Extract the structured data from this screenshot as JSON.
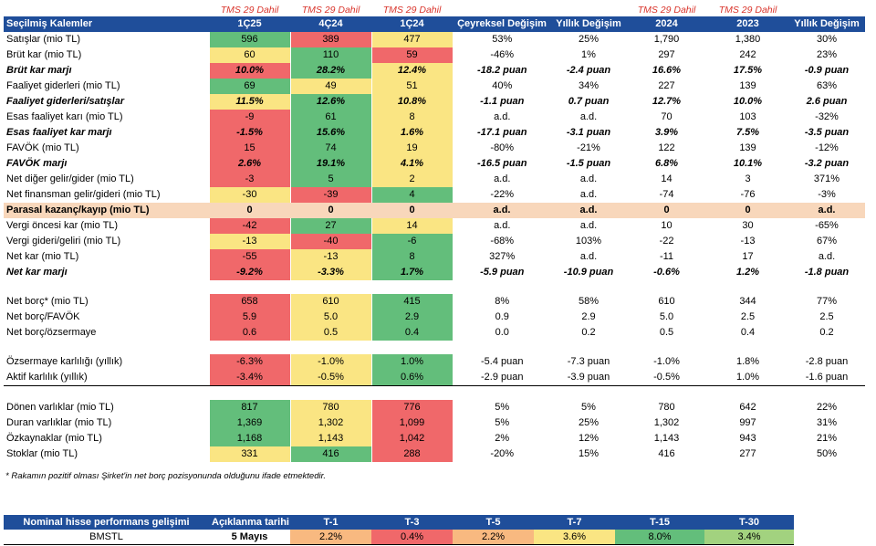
{
  "tms": {
    "c1": "TMS 29 Dahil",
    "c2": "TMS 29 Dahil",
    "c3": "TMS 29 Dahil",
    "c6": "TMS 29 Dahil",
    "c7": "TMS 29 Dahil"
  },
  "headers": [
    "Seçilmiş Kalemler",
    "1Ç25",
    "4Ç24",
    "1Ç24",
    "Çeyreksel Değişim",
    "Yıllık Değişim",
    "2024",
    "2023",
    "Yıllık Değişim"
  ],
  "rows": [
    {
      "label": "Satışlar (mio TL)",
      "vals": [
        "596",
        "389",
        "477",
        "53%",
        "25%",
        "1,790",
        "1,380",
        "30%"
      ],
      "colors": [
        "g",
        "r",
        "y"
      ]
    },
    {
      "label": "Brüt kar (mio TL)",
      "vals": [
        "60",
        "110",
        "59",
        "-46%",
        "1%",
        "297",
        "242",
        "23%"
      ],
      "colors": [
        "y",
        "g",
        "r"
      ]
    },
    {
      "label": "Brüt kar marjı",
      "vals": [
        "10.0%",
        "28.2%",
        "12.4%",
        "-18.2 puan",
        "-2.4 puan",
        "16.6%",
        "17.5%",
        "-0.9 puan"
      ],
      "colors": [
        "r",
        "g",
        "y"
      ],
      "style": "ital"
    },
    {
      "label": "Faaliyet giderleri (mio TL)",
      "vals": [
        "69",
        "49",
        "51",
        "40%",
        "34%",
        "227",
        "139",
        "63%"
      ],
      "colors": [
        "g",
        "y",
        "y"
      ]
    },
    {
      "label": "Faaliyet giderleri/satışlar",
      "vals": [
        "11.5%",
        "12.6%",
        "10.8%",
        "-1.1 puan",
        "0.7 puan",
        "12.7%",
        "10.0%",
        "2.6 puan"
      ],
      "colors": [
        "y",
        "g",
        "y"
      ],
      "style": "ital"
    },
    {
      "label": "Esas faaliyet karı (mio TL)",
      "vals": [
        "-9",
        "61",
        "8",
        "a.d.",
        "a.d.",
        "70",
        "103",
        "-32%"
      ],
      "colors": [
        "r",
        "g",
        "y"
      ]
    },
    {
      "label": "Esas faaliyet kar marjı",
      "vals": [
        "-1.5%",
        "15.6%",
        "1.6%",
        "-17.1 puan",
        "-3.1 puan",
        "3.9%",
        "7.5%",
        "-3.5 puan"
      ],
      "colors": [
        "r",
        "g",
        "y"
      ],
      "style": "ital"
    },
    {
      "label": "FAVÖK (mio TL)",
      "vals": [
        "15",
        "74",
        "19",
        "-80%",
        "-21%",
        "122",
        "139",
        "-12%"
      ],
      "colors": [
        "r",
        "g",
        "y"
      ]
    },
    {
      "label": "FAVÖK marjı",
      "vals": [
        "2.6%",
        "19.1%",
        "4.1%",
        "-16.5 puan",
        "-1.5 puan",
        "6.8%",
        "10.1%",
        "-3.2 puan"
      ],
      "colors": [
        "r",
        "g",
        "y"
      ],
      "style": "ital"
    },
    {
      "label": "Net diğer gelir/gider (mio TL)",
      "vals": [
        "-3",
        "5",
        "2",
        "a.d.",
        "a.d.",
        "14",
        "3",
        "371%"
      ],
      "colors": [
        "r",
        "g",
        "y"
      ]
    },
    {
      "label": "Net finansman gelir/gideri (mio TL)",
      "vals": [
        "-30",
        "-39",
        "4",
        "-22%",
        "a.d.",
        "-74",
        "-76",
        "-3%"
      ],
      "colors": [
        "y",
        "r",
        "g"
      ]
    },
    {
      "label": "Parasal kazanç/kayıp (mio TL)",
      "vals": [
        "0",
        "0",
        "0",
        "a.d.",
        "a.d.",
        "0",
        "0",
        "a.d."
      ],
      "colors": [
        "g",
        "g",
        "g"
      ],
      "style": "hl"
    },
    {
      "label": "Vergi öncesi kar (mio TL)",
      "vals": [
        "-42",
        "27",
        "14",
        "a.d.",
        "a.d.",
        "10",
        "30",
        "-65%"
      ],
      "colors": [
        "r",
        "g",
        "y"
      ]
    },
    {
      "label": "Vergi gideri/geliri (mio TL)",
      "vals": [
        "-13",
        "-40",
        "-6",
        "-68%",
        "103%",
        "-22",
        "-13",
        "67%"
      ],
      "colors": [
        "y",
        "r",
        "g"
      ]
    },
    {
      "label": "Net kar (mio TL)",
      "vals": [
        "-55",
        "-13",
        "8",
        "327%",
        "a.d.",
        "-11",
        "17",
        "a.d."
      ],
      "colors": [
        "r",
        "y",
        "g"
      ]
    },
    {
      "label": "Net kar marjı",
      "vals": [
        "-9.2%",
        "-3.3%",
        "1.7%",
        "-5.9 puan",
        "-10.9 puan",
        "-0.6%",
        "1.2%",
        "-1.8 puan"
      ],
      "colors": [
        "r",
        "y",
        "g"
      ],
      "style": "ital"
    },
    {
      "gap": true
    },
    {
      "label": "Net borç* (mio TL)",
      "vals": [
        "658",
        "610",
        "415",
        "8%",
        "58%",
        "610",
        "344",
        "77%"
      ],
      "colors": [
        "r",
        "y",
        "g"
      ]
    },
    {
      "label": "Net borç/FAVÖK",
      "vals": [
        "5.9",
        "5.0",
        "2.9",
        "0.9",
        "2.9",
        "5.0",
        "2.5",
        "2.5"
      ],
      "colors": [
        "r",
        "y",
        "g"
      ]
    },
    {
      "label": "Net borç/özsermaye",
      "vals": [
        "0.6",
        "0.5",
        "0.4",
        "0.0",
        "0.2",
        "0.5",
        "0.4",
        "0.2"
      ],
      "colors": [
        "r",
        "y",
        "g"
      ]
    },
    {
      "gap": true
    },
    {
      "label": "Özsermaye karlılığı (yıllık)",
      "vals": [
        "-6.3%",
        "-1.0%",
        "1.0%",
        "-5.4 puan",
        "-7.3 puan",
        "-1.0%",
        "1.8%",
        "-2.8 puan"
      ],
      "colors": [
        "r",
        "y",
        "g"
      ]
    },
    {
      "label": "Aktif karlılık (yıllık)",
      "vals": [
        "-3.4%",
        "-0.5%",
        "0.6%",
        "-2.9 puan",
        "-3.9 puan",
        "-0.5%",
        "1.0%",
        "-1.6 puan"
      ],
      "colors": [
        "r",
        "y",
        "g"
      ],
      "sep": true
    },
    {
      "gap": true
    },
    {
      "label": "Dönen varlıklar (mio TL)",
      "vals": [
        "817",
        "780",
        "776",
        "5%",
        "5%",
        "780",
        "642",
        "22%"
      ],
      "colors": [
        "g",
        "y",
        "r"
      ]
    },
    {
      "label": "Duran varlıklar (mio TL)",
      "vals": [
        "1,369",
        "1,302",
        "1,099",
        "5%",
        "25%",
        "1,302",
        "997",
        "31%"
      ],
      "colors": [
        "g",
        "y",
        "r"
      ]
    },
    {
      "label": "Özkaynaklar (mio TL)",
      "vals": [
        "1,168",
        "1,143",
        "1,042",
        "2%",
        "12%",
        "1,143",
        "943",
        "21%"
      ],
      "colors": [
        "g",
        "y",
        "r"
      ]
    },
    {
      "label": "Stoklar (mio TL)",
      "vals": [
        "331",
        "416",
        "288",
        "-20%",
        "15%",
        "416",
        "277",
        "50%"
      ],
      "colors": [
        "y",
        "g",
        "r"
      ]
    }
  ],
  "note": "* Rakamın pozitif olması Şirket'in net borç pozisyonunda olduğunu ifade etmektedir.",
  "perf": {
    "headers": [
      "Nominal hisse performans gelişimi",
      "Açıklanma tarihi",
      "T-1",
      "T-3",
      "T-5",
      "T-7",
      "T-15",
      "T-30"
    ],
    "row": {
      "label": "BMSTL",
      "date": "5 Mayıs",
      "vals": [
        "2.2%",
        "0.4%",
        "2.2%",
        "3.6%",
        "8.0%",
        "3.4%"
      ],
      "colors": [
        "o",
        "r",
        "o",
        "y",
        "g",
        "lg"
      ]
    }
  }
}
